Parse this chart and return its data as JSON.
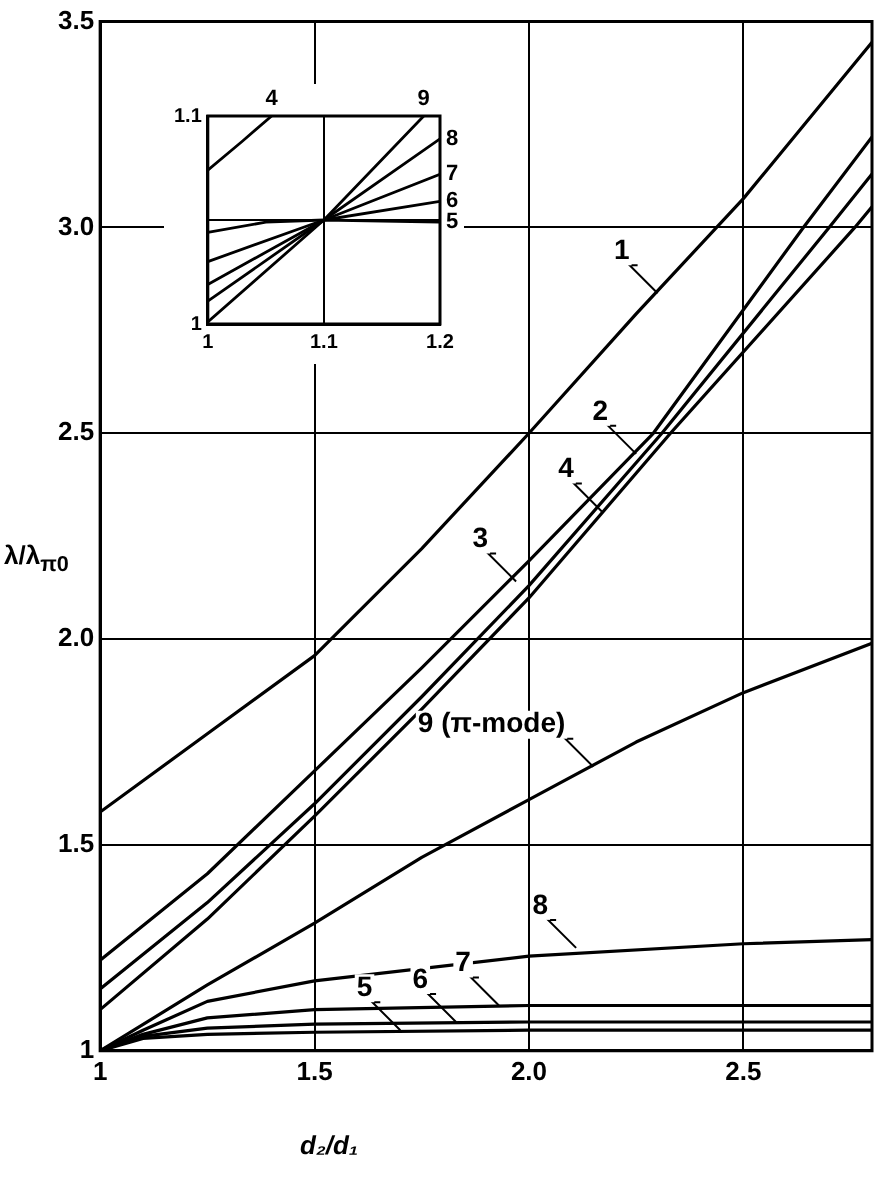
{
  "chart_data": [
    {
      "type": "line",
      "xlabel": "d₂/d₁",
      "ylabel": "λ/λ$_{π0}$",
      "xlim": [
        1,
        2.8
      ],
      "ylim": [
        1,
        3.5
      ],
      "xticks": [
        1,
        {
          "value": 1.5,
          "label": "1.5"
        },
        {
          "value": 2,
          "label": "2.0"
        },
        {
          "value": 2.5,
          "label": "2.5"
        }
      ],
      "yticks": [
        1,
        {
          "value": 1.5,
          "label": "1.5"
        },
        {
          "value": 2,
          "label": "2.0"
        },
        {
          "value": 2.5,
          "label": "2.5"
        },
        {
          "value": 3,
          "label": "3.0"
        },
        {
          "value": 3.5,
          "label": "3.5"
        }
      ],
      "grid": true,
      "marker": "none",
      "line_style": "solid",
      "series": [
        {
          "color": "#000000",
          "x": [
            1,
            1.25,
            1.5,
            1.75,
            2,
            2.25,
            2.5,
            2.8
          ],
          "values": [
            1.58,
            1.77,
            1.96,
            2.22,
            2.5,
            2.79,
            3.07,
            3.45
          ]
        },
        {
          "color": "#000000",
          "x": [
            1,
            1.25,
            1.5,
            1.75,
            2,
            2.29,
            2.64,
            2.8
          ],
          "values": [
            1.22,
            1.43,
            1.68,
            1.93,
            2.19,
            2.5,
            3.0,
            3.22
          ]
        },
        {
          "color": "#000000",
          "x": [
            1,
            1.25,
            1.5,
            1.75,
            2,
            2.31,
            2.7,
            2.8
          ],
          "values": [
            1.15,
            1.36,
            1.6,
            1.86,
            2.13,
            2.5,
            3.0,
            3.13
          ]
        },
        {
          "color": "#000000",
          "x": [
            1,
            1.25,
            1.5,
            1.75,
            2,
            2.33,
            2.76,
            2.8
          ],
          "values": [
            1.1,
            1.32,
            1.57,
            1.83,
            2.1,
            2.5,
            3.0,
            3.05
          ]
        },
        {
          "color": "#000000",
          "x": [
            1,
            1.1,
            1.25,
            1.5,
            2,
            2.8
          ],
          "values": [
            1.0,
            1.03,
            1.04,
            1.045,
            1.05,
            1.05
          ]
        },
        {
          "color": "#000000",
          "x": [
            1,
            1.1,
            1.25,
            1.5,
            2,
            2.8
          ],
          "values": [
            1.0,
            1.035,
            1.055,
            1.065,
            1.07,
            1.07
          ]
        },
        {
          "color": "#000000",
          "x": [
            1,
            1.1,
            1.25,
            1.5,
            2,
            2.8
          ],
          "values": [
            1.0,
            1.04,
            1.08,
            1.1,
            1.11,
            1.11
          ]
        },
        {
          "color": "#000000",
          "x": [
            1,
            1.1,
            1.25,
            1.5,
            2,
            2.5,
            2.8
          ],
          "values": [
            1.0,
            1.05,
            1.12,
            1.17,
            1.23,
            1.26,
            1.27
          ]
        },
        {
          "color": "#000000",
          "x": [
            1,
            1.25,
            1.5,
            1.75,
            2,
            2.25,
            2.5,
            2.8
          ],
          "values": [
            1.0,
            1.16,
            1.31,
            1.47,
            1.61,
            1.75,
            1.87,
            1.99
          ]
        }
      ],
      "annotations": [
        {
          "text": "1",
          "x": 2.3,
          "y": 2.84
        },
        {
          "text": "2",
          "x": 2.25,
          "y": 2.45
        },
        {
          "text": "3",
          "x": 1.97,
          "y": 2.14
        },
        {
          "text": "4",
          "x": 2.17,
          "y": 2.31
        },
        {
          "text": "5",
          "x": 1.7,
          "y": 1.05
        },
        {
          "text": "6",
          "x": 1.83,
          "y": 1.07
        },
        {
          "text": "7",
          "x": 1.93,
          "y": 1.11
        },
        {
          "text": "8",
          "x": 2.11,
          "y": 1.25
        },
        {
          "text": "9 (π-mode)",
          "x": 2.15,
          "y": 1.69
        }
      ]
    },
    {
      "type": "line",
      "xlim": [
        1,
        1.2
      ],
      "ylim": [
        1,
        1.1
      ],
      "xticks": [
        1,
        {
          "value": 1.1,
          "label": "1.1"
        },
        {
          "value": 1.2,
          "label": "1.2"
        }
      ],
      "yticks": [
        1,
        {
          "value": 1.05,
          "label": null
        },
        {
          "value": 1.1,
          "label": "1.1"
        }
      ],
      "grid": true,
      "marker": "none",
      "line_style": "solid",
      "series": [
        {
          "color": "#000000",
          "x": [
            1,
            1.03,
            1.055
          ],
          "values": [
            1.074,
            1.088,
            1.1
          ]
        },
        {
          "color": "#000000",
          "x": [
            1,
            1.05,
            1.1,
            1.2
          ],
          "values": [
            1.044,
            1.049,
            1.05,
            1.049
          ]
        },
        {
          "color": "#000000",
          "x": [
            1,
            1.1,
            1.2
          ],
          "values": [
            1.03,
            1.05,
            1.059
          ]
        },
        {
          "color": "#000000",
          "x": [
            1,
            1.1,
            1.2
          ],
          "values": [
            1.019,
            1.05,
            1.072
          ]
        },
        {
          "color": "#000000",
          "x": [
            1,
            1.1,
            1.2
          ],
          "values": [
            1.011,
            1.05,
            1.089
          ]
        },
        {
          "color": "#000000",
          "x": [
            1,
            1.1,
            1.186
          ],
          "values": [
            1.001,
            1.05,
            1.1
          ]
        }
      ],
      "annotations": [
        {
          "text": "4",
          "x": 1.055,
          "y": 1.1
        },
        {
          "text": "9",
          "x": 1.186,
          "y": 1.1
        },
        {
          "text": "8",
          "x": 1.2,
          "y": 1.089
        },
        {
          "text": "7",
          "x": 1.2,
          "y": 1.072
        },
        {
          "text": "6",
          "x": 1.2,
          "y": 1.059
        },
        {
          "text": "5",
          "x": 1.2,
          "y": 1.049
        }
      ]
    }
  ]
}
